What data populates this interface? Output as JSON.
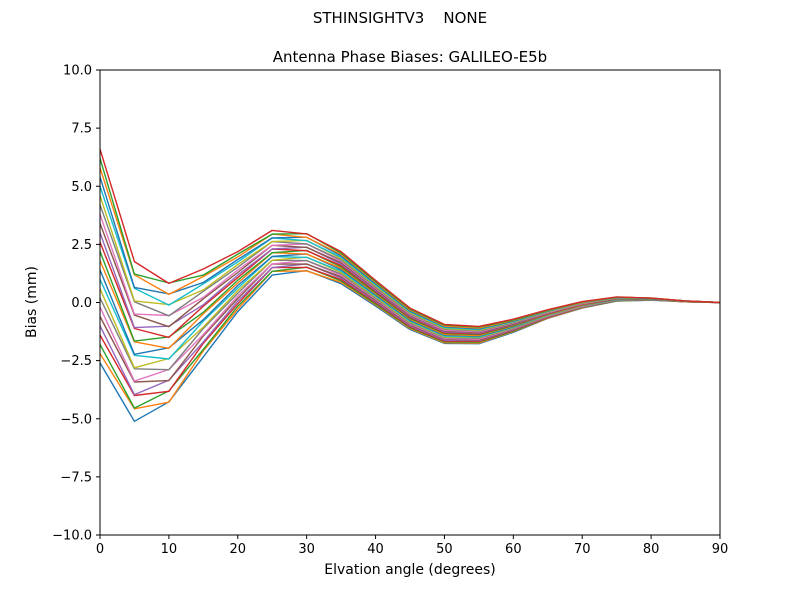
{
  "figure": {
    "suptitle": "STHINSIGHTV3    NONE",
    "axes_title": "Antenna Phase Biases: GALILEO-E5b"
  },
  "chart_data": {
    "type": "line",
    "title": "Antenna Phase Biases: GALILEO-E5b",
    "suptitle": "STHINSIGHTV3    NONE",
    "xlabel": "Elvation angle (degrees)",
    "ylabel": "Bias (mm)",
    "xlim": [
      0,
      90
    ],
    "ylim": [
      -10,
      10
    ],
    "grid": false,
    "legend": "none",
    "x_ticks": [
      0,
      10,
      20,
      30,
      40,
      50,
      60,
      70,
      80,
      90
    ],
    "x_tick_labels": [
      "0",
      "10",
      "20",
      "30",
      "40",
      "50",
      "60",
      "70",
      "80",
      "90"
    ],
    "y_ticks": [
      -10,
      -7.5,
      -5,
      -2.5,
      0,
      2.5,
      5,
      7.5,
      10
    ],
    "y_tick_labels": [
      "−10.0",
      "−7.5",
      "−5.0",
      "−2.5",
      "0.0",
      "2.5",
      "5.0",
      "7.5",
      "10.0"
    ],
    "x": [
      0,
      5,
      10,
      15,
      20,
      25,
      30,
      35,
      40,
      45,
      50,
      55,
      60,
      65,
      70,
      75,
      80,
      85,
      90
    ],
    "series": [
      {
        "color": "#1f77b4",
        "values": [
          -2.6,
          -5.11,
          -4.27,
          -2.34,
          -0.39,
          1.18,
          1.37,
          0.81,
          -0.15,
          -1.16,
          -1.76,
          -1.77,
          -1.28,
          -0.68,
          -0.24,
          0.06,
          0.1,
          0.03,
          0.0
        ]
      },
      {
        "color": "#ff7f0e",
        "values": [
          -2.2,
          -4.57,
          -4.29,
          -2.08,
          -0.28,
          1.34,
          1.36,
          0.87,
          -0.1,
          -1.12,
          -1.73,
          -1.74,
          -1.25,
          -0.67,
          -0.23,
          0.07,
          0.11,
          0.03,
          0.0
        ]
      },
      {
        "color": "#2ca02c",
        "values": [
          -1.8,
          -4.54,
          -3.8,
          -2.02,
          -0.16,
          1.34,
          1.52,
          0.93,
          -0.06,
          -1.08,
          -1.69,
          -1.7,
          -1.23,
          -0.65,
          -0.21,
          0.07,
          0.11,
          0.03,
          0.0
        ]
      },
      {
        "color": "#d62728",
        "values": [
          -1.4,
          -4.0,
          -3.82,
          -1.76,
          -0.05,
          1.5,
          1.51,
          0.99,
          -0.01,
          -1.04,
          -1.66,
          -1.67,
          -1.2,
          -0.64,
          -0.2,
          0.08,
          0.12,
          0.03,
          0.0
        ]
      },
      {
        "color": "#9467bd",
        "values": [
          -1.0,
          -3.96,
          -3.34,
          -1.7,
          0.06,
          1.5,
          1.66,
          1.05,
          0.04,
          -1.0,
          -1.62,
          -1.64,
          -1.18,
          -0.62,
          -0.19,
          0.09,
          0.12,
          0.04,
          0.0
        ]
      },
      {
        "color": "#8c564b",
        "values": [
          -0.6,
          -3.42,
          -3.36,
          -1.44,
          0.17,
          1.66,
          1.65,
          1.11,
          0.09,
          -0.96,
          -1.58,
          -1.61,
          -1.16,
          -0.6,
          -0.18,
          0.1,
          0.12,
          0.04,
          0.0
        ]
      },
      {
        "color": "#e377c2",
        "values": [
          -0.2,
          -3.38,
          -2.88,
          -1.38,
          0.28,
          1.66,
          1.8,
          1.17,
          0.14,
          -0.92,
          -1.55,
          -1.58,
          -1.13,
          -0.59,
          -0.17,
          0.11,
          0.13,
          0.04,
          0.0
        ]
      },
      {
        "color": "#7f7f7f",
        "values": [
          0.2,
          -2.85,
          -2.89,
          -1.12,
          0.4,
          1.82,
          1.8,
          1.23,
          0.18,
          -0.88,
          -1.51,
          -1.54,
          -1.11,
          -0.57,
          -0.15,
          0.11,
          0.13,
          0.04,
          0.0
        ]
      },
      {
        "color": "#bcbd22",
        "values": [
          0.6,
          -2.81,
          -2.41,
          -1.06,
          0.51,
          1.82,
          1.95,
          1.29,
          0.23,
          -0.84,
          -1.48,
          -1.51,
          -1.08,
          -0.56,
          -0.14,
          0.12,
          0.14,
          0.04,
          0.0
        ]
      },
      {
        "color": "#17becf",
        "values": [
          1.0,
          -2.27,
          -2.43,
          -0.8,
          0.62,
          1.98,
          1.94,
          1.35,
          0.28,
          -0.8,
          -1.44,
          -1.48,
          -1.06,
          -0.54,
          -0.13,
          0.13,
          0.14,
          0.05,
          0.0
        ]
      },
      {
        "color": "#1f77b4",
        "values": [
          1.4,
          -2.23,
          -1.95,
          -0.74,
          0.73,
          1.98,
          2.09,
          1.41,
          0.33,
          -0.76,
          -1.4,
          -1.45,
          -1.04,
          -0.52,
          -0.12,
          0.14,
          0.14,
          0.05,
          0.0
        ]
      },
      {
        "color": "#ff7f0e",
        "values": [
          1.8,
          -1.69,
          -1.97,
          -0.48,
          0.84,
          2.14,
          2.08,
          1.47,
          0.38,
          -0.72,
          -1.37,
          -1.42,
          -1.01,
          -0.51,
          -0.11,
          0.15,
          0.15,
          0.05,
          0.0
        ]
      },
      {
        "color": "#2ca02c",
        "values": [
          2.2,
          -1.66,
          -1.48,
          -0.42,
          0.96,
          2.14,
          2.24,
          1.53,
          0.42,
          -0.68,
          -1.33,
          -1.38,
          -0.99,
          -0.49,
          -0.09,
          0.15,
          0.15,
          0.05,
          0.0
        ]
      },
      {
        "color": "#d62728",
        "values": [
          2.6,
          -1.12,
          -1.5,
          -0.16,
          1.07,
          2.3,
          2.23,
          1.59,
          0.47,
          -0.64,
          -1.3,
          -1.35,
          -0.96,
          -0.48,
          -0.08,
          0.16,
          0.16,
          0.05,
          0.0
        ]
      },
      {
        "color": "#9467bd",
        "values": [
          3.0,
          -1.08,
          -1.02,
          -0.1,
          1.18,
          2.3,
          2.38,
          1.65,
          0.52,
          -0.6,
          -1.26,
          -1.32,
          -0.94,
          -0.46,
          -0.07,
          0.17,
          0.16,
          0.06,
          0.0
        ]
      },
      {
        "color": "#8c564b",
        "values": [
          3.4,
          -0.54,
          -1.04,
          0.16,
          1.29,
          2.46,
          2.37,
          1.71,
          0.57,
          -0.56,
          -1.22,
          -1.29,
          -0.92,
          -0.44,
          -0.06,
          0.18,
          0.16,
          0.06,
          0.0
        ]
      },
      {
        "color": "#e377c2",
        "values": [
          3.8,
          -0.5,
          -0.56,
          0.22,
          1.4,
          2.46,
          2.52,
          1.77,
          0.62,
          -0.52,
          -1.19,
          -1.26,
          -0.89,
          -0.43,
          -0.05,
          0.19,
          0.17,
          0.06,
          0.0
        ]
      },
      {
        "color": "#7f7f7f",
        "values": [
          4.2,
          0.03,
          -0.57,
          0.48,
          1.52,
          2.62,
          2.52,
          1.83,
          0.66,
          -0.48,
          -1.15,
          -1.22,
          -0.87,
          -0.41,
          -0.03,
          0.19,
          0.17,
          0.06,
          0.0
        ]
      },
      {
        "color": "#bcbd22",
        "values": [
          4.6,
          0.07,
          -0.09,
          0.54,
          1.63,
          2.62,
          2.67,
          1.89,
          0.71,
          -0.44,
          -1.12,
          -1.19,
          -0.84,
          -0.4,
          -0.02,
          0.2,
          0.18,
          0.06,
          0.0
        ]
      },
      {
        "color": "#17becf",
        "values": [
          5.0,
          0.61,
          -0.11,
          0.8,
          1.74,
          2.78,
          2.66,
          1.95,
          0.76,
          -0.4,
          -1.08,
          -1.16,
          -0.82,
          -0.38,
          -0.01,
          0.21,
          0.18,
          0.07,
          0.0
        ]
      },
      {
        "color": "#1f77b4",
        "values": [
          5.4,
          0.65,
          0.37,
          0.86,
          1.85,
          2.78,
          2.81,
          2.01,
          0.81,
          -0.36,
          -1.04,
          -1.13,
          -0.8,
          -0.36,
          0.0,
          0.22,
          0.18,
          0.07,
          0.0
        ]
      },
      {
        "color": "#ff7f0e",
        "values": [
          5.8,
          1.19,
          0.35,
          1.12,
          1.96,
          2.94,
          2.8,
          2.07,
          0.86,
          -0.32,
          -1.01,
          -1.1,
          -0.77,
          -0.35,
          0.01,
          0.23,
          0.19,
          0.07,
          0.0
        ]
      },
      {
        "color": "#2ca02c",
        "values": [
          6.2,
          1.22,
          0.84,
          1.18,
          2.08,
          2.94,
          2.96,
          2.13,
          0.9,
          -0.28,
          -0.97,
          -1.06,
          -0.75,
          -0.33,
          0.03,
          0.23,
          0.19,
          0.07,
          0.0
        ]
      },
      {
        "color": "#d62728",
        "values": [
          6.6,
          1.76,
          0.82,
          1.44,
          2.19,
          3.1,
          2.95,
          2.19,
          0.95,
          -0.24,
          -0.94,
          -1.03,
          -0.72,
          -0.31,
          0.04,
          0.24,
          0.19,
          0.07,
          0.0
        ]
      }
    ]
  }
}
